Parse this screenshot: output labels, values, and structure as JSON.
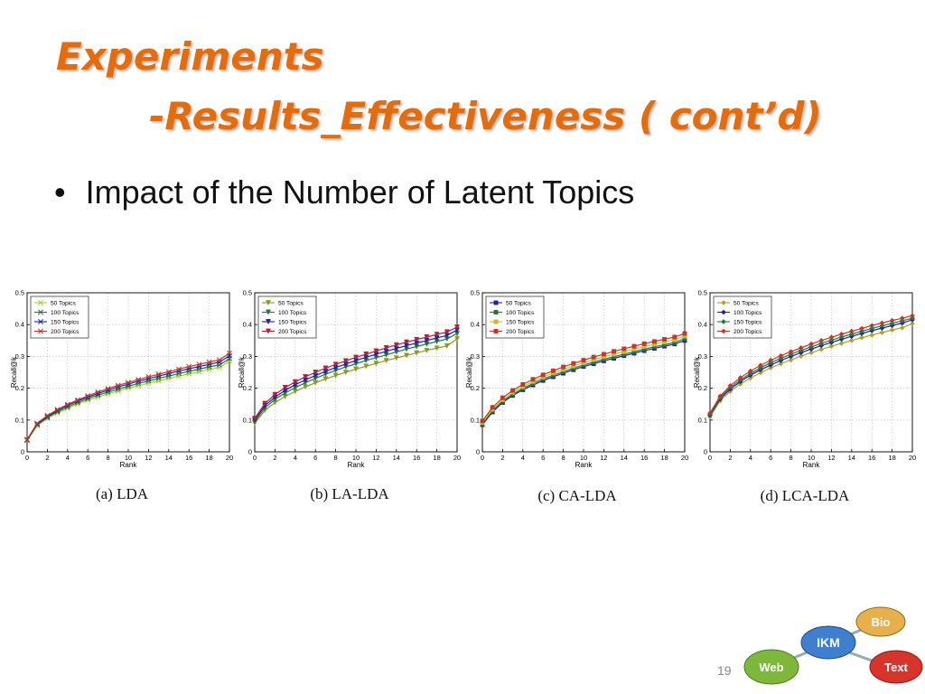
{
  "slide": {
    "title_line1": "Experiments",
    "title_line2": "-Results_Effectiveness ( cont’d)",
    "bullet": "Impact of the Number of Latent Topics",
    "page_number": "19"
  },
  "logo": {
    "nodes": [
      {
        "label": "Bio",
        "color": "#e8b04a"
      },
      {
        "label": "IKM",
        "color": "#3f7fcf"
      },
      {
        "label": "Web",
        "color": "#7db83a"
      },
      {
        "label": "Text",
        "color": "#d9342b"
      }
    ]
  },
  "chart_data": [
    {
      "type": "line",
      "caption": "(a) LDA",
      "xlabel": "Rank",
      "ylabel": "Recall@k",
      "xlim": [
        0,
        20
      ],
      "ylim": [
        0,
        0.5
      ],
      "xticks": [
        "0",
        "2",
        "4",
        "6",
        "8",
        "10",
        "12",
        "14",
        "16",
        "18",
        "20"
      ],
      "yticks": [
        "0",
        "0.1",
        "0.2",
        "0.3",
        "0.4",
        "0.5"
      ],
      "grid": true,
      "legend_position": "top-left",
      "x": [
        0,
        1,
        2,
        3,
        4,
        5,
        6,
        7,
        8,
        9,
        10,
        11,
        12,
        13,
        14,
        15,
        16,
        17,
        18,
        19,
        20
      ],
      "series": [
        {
          "name": "50 Topics",
          "color": "#a8d020",
          "marker": "x",
          "values": [
            0.035,
            0.082,
            0.105,
            0.122,
            0.137,
            0.15,
            0.162,
            0.172,
            0.182,
            0.191,
            0.2,
            0.208,
            0.216,
            0.223,
            0.231,
            0.238,
            0.245,
            0.252,
            0.259,
            0.265,
            0.285
          ]
        },
        {
          "name": "100 Topics",
          "color": "#1f7a3a",
          "marker": "x",
          "values": [
            0.037,
            0.085,
            0.108,
            0.126,
            0.141,
            0.155,
            0.167,
            0.178,
            0.188,
            0.197,
            0.206,
            0.215,
            0.223,
            0.231,
            0.238,
            0.246,
            0.253,
            0.26,
            0.267,
            0.273,
            0.293
          ]
        },
        {
          "name": "150 Topics",
          "color": "#1f1fb4",
          "marker": "x",
          "values": [
            0.038,
            0.088,
            0.111,
            0.13,
            0.146,
            0.16,
            0.172,
            0.183,
            0.194,
            0.204,
            0.213,
            0.222,
            0.23,
            0.238,
            0.246,
            0.254,
            0.261,
            0.268,
            0.275,
            0.282,
            0.302
          ]
        },
        {
          "name": "200 Topics",
          "color": "#c0392b",
          "marker": "x",
          "values": [
            0.039,
            0.09,
            0.114,
            0.133,
            0.149,
            0.163,
            0.176,
            0.188,
            0.199,
            0.209,
            0.218,
            0.227,
            0.236,
            0.244,
            0.252,
            0.26,
            0.268,
            0.275,
            0.282,
            0.289,
            0.31
          ]
        }
      ]
    },
    {
      "type": "line",
      "caption": "(b) LA-LDA",
      "xlabel": "Rank",
      "ylabel": "Recall@k",
      "xlim": [
        0,
        20
      ],
      "ylim": [
        0,
        0.5
      ],
      "xticks": [
        "0",
        "2",
        "4",
        "6",
        "8",
        "10",
        "12",
        "14",
        "16",
        "18",
        "20"
      ],
      "yticks": [
        "0",
        "0.1",
        "0.2",
        "0.3",
        "0.4",
        "0.5"
      ],
      "grid": true,
      "legend_position": "top-left",
      "x": [
        0,
        1,
        2,
        3,
        4,
        5,
        6,
        7,
        8,
        9,
        10,
        11,
        12,
        13,
        14,
        15,
        16,
        17,
        18,
        19,
        20
      ],
      "series": [
        {
          "name": "50 Topics",
          "color": "#8a9a20",
          "marker": "triangle-down",
          "values": [
            0.09,
            0.13,
            0.155,
            0.174,
            0.19,
            0.204,
            0.217,
            0.229,
            0.24,
            0.25,
            0.26,
            0.269,
            0.278,
            0.287,
            0.295,
            0.303,
            0.311,
            0.319,
            0.326,
            0.333,
            0.355
          ]
        },
        {
          "name": "100 Topics",
          "color": "#1f7a3a",
          "marker": "triangle-down",
          "values": [
            0.095,
            0.138,
            0.165,
            0.185,
            0.202,
            0.217,
            0.231,
            0.244,
            0.256,
            0.267,
            0.277,
            0.287,
            0.296,
            0.305,
            0.314,
            0.323,
            0.331,
            0.339,
            0.347,
            0.355,
            0.372
          ]
        },
        {
          "name": "150 Topics",
          "color": "#1f1fb4",
          "marker": "triangle-down",
          "values": [
            0.1,
            0.145,
            0.172,
            0.193,
            0.211,
            0.226,
            0.24,
            0.253,
            0.265,
            0.276,
            0.287,
            0.297,
            0.307,
            0.316,
            0.325,
            0.334,
            0.342,
            0.35,
            0.358,
            0.366,
            0.383
          ]
        },
        {
          "name": "200 Topics",
          "color": "#b0203a",
          "marker": "triangle-down",
          "values": [
            0.105,
            0.152,
            0.18,
            0.202,
            0.22,
            0.236,
            0.25,
            0.263,
            0.275,
            0.286,
            0.297,
            0.307,
            0.317,
            0.327,
            0.336,
            0.345,
            0.353,
            0.361,
            0.369,
            0.377,
            0.392
          ]
        }
      ]
    },
    {
      "type": "line",
      "caption": "(c) CA-LDA",
      "xlabel": "Rank",
      "ylabel": "Recall@k",
      "xlim": [
        0,
        20
      ],
      "ylim": [
        0,
        0.5
      ],
      "xticks": [
        "0",
        "2",
        "4",
        "6",
        "8",
        "10",
        "12",
        "14",
        "16",
        "18",
        "20"
      ],
      "yticks": [
        "0",
        "0.1",
        "0.2",
        "0.3",
        "0.4",
        "0.5"
      ],
      "grid": true,
      "legend_position": "top-left",
      "x": [
        0,
        1,
        2,
        3,
        4,
        5,
        6,
        7,
        8,
        9,
        10,
        11,
        12,
        13,
        14,
        15,
        16,
        17,
        18,
        19,
        20
      ],
      "series": [
        {
          "name": "50 Topics",
          "color": "#1f1fb4",
          "marker": "square",
          "values": [
            0.085,
            0.125,
            0.155,
            0.177,
            0.195,
            0.21,
            0.224,
            0.236,
            0.247,
            0.258,
            0.268,
            0.277,
            0.286,
            0.294,
            0.302,
            0.31,
            0.318,
            0.325,
            0.332,
            0.339,
            0.35
          ]
        },
        {
          "name": "100 Topics",
          "color": "#1f7a3a",
          "marker": "square",
          "values": [
            0.088,
            0.129,
            0.159,
            0.181,
            0.199,
            0.215,
            0.229,
            0.241,
            0.252,
            0.263,
            0.273,
            0.282,
            0.291,
            0.299,
            0.307,
            0.315,
            0.323,
            0.33,
            0.337,
            0.344,
            0.356
          ]
        },
        {
          "name": "150 Topics",
          "color": "#d4b82a",
          "marker": "square",
          "values": [
            0.092,
            0.134,
            0.164,
            0.187,
            0.205,
            0.221,
            0.235,
            0.248,
            0.259,
            0.27,
            0.28,
            0.29,
            0.299,
            0.307,
            0.315,
            0.323,
            0.331,
            0.338,
            0.345,
            0.352,
            0.364
          ]
        },
        {
          "name": "200 Topics",
          "color": "#c0392b",
          "marker": "square",
          "values": [
            0.097,
            0.14,
            0.17,
            0.193,
            0.212,
            0.228,
            0.242,
            0.255,
            0.267,
            0.278,
            0.288,
            0.298,
            0.307,
            0.316,
            0.324,
            0.332,
            0.34,
            0.347,
            0.354,
            0.361,
            0.372
          ]
        }
      ]
    },
    {
      "type": "line",
      "caption": "(d) LCA-LDA",
      "xlabel": "Rank",
      "ylabel": "Recall@k",
      "xlim": [
        0,
        20
      ],
      "ylim": [
        0,
        0.5
      ],
      "xticks": [
        "0",
        "2",
        "4",
        "6",
        "8",
        "10",
        "12",
        "14",
        "16",
        "18",
        "20"
      ],
      "yticks": [
        "0",
        "0.1",
        "0.2",
        "0.3",
        "0.4",
        "0.5"
      ],
      "grid": true,
      "legend_position": "top-left",
      "x": [
        0,
        1,
        2,
        3,
        4,
        5,
        6,
        7,
        8,
        9,
        10,
        11,
        12,
        13,
        14,
        15,
        16,
        17,
        18,
        19,
        20
      ],
      "series": [
        {
          "name": "50 Topics",
          "color": "#b5a020",
          "marker": "diamond",
          "values": [
            0.11,
            0.16,
            0.19,
            0.213,
            0.232,
            0.249,
            0.264,
            0.277,
            0.289,
            0.301,
            0.312,
            0.322,
            0.332,
            0.341,
            0.35,
            0.359,
            0.367,
            0.375,
            0.383,
            0.39,
            0.403
          ]
        },
        {
          "name": "100 Topics",
          "color": "#1f1fb4",
          "marker": "diamond",
          "values": [
            0.115,
            0.166,
            0.197,
            0.221,
            0.241,
            0.258,
            0.273,
            0.287,
            0.3,
            0.312,
            0.323,
            0.334,
            0.344,
            0.354,
            0.363,
            0.372,
            0.381,
            0.389,
            0.397,
            0.405,
            0.415
          ]
        },
        {
          "name": "150 Topics",
          "color": "#1f7a3a",
          "marker": "diamond",
          "values": [
            0.118,
            0.17,
            0.202,
            0.226,
            0.246,
            0.264,
            0.28,
            0.294,
            0.307,
            0.319,
            0.33,
            0.341,
            0.351,
            0.361,
            0.37,
            0.379,
            0.388,
            0.396,
            0.404,
            0.412,
            0.42
          ]
        },
        {
          "name": "200 Topics",
          "color": "#c0392b",
          "marker": "diamond",
          "values": [
            0.122,
            0.175,
            0.208,
            0.233,
            0.254,
            0.272,
            0.288,
            0.302,
            0.315,
            0.327,
            0.339,
            0.35,
            0.36,
            0.37,
            0.379,
            0.388,
            0.397,
            0.405,
            0.413,
            0.42,
            0.428
          ]
        }
      ]
    }
  ]
}
